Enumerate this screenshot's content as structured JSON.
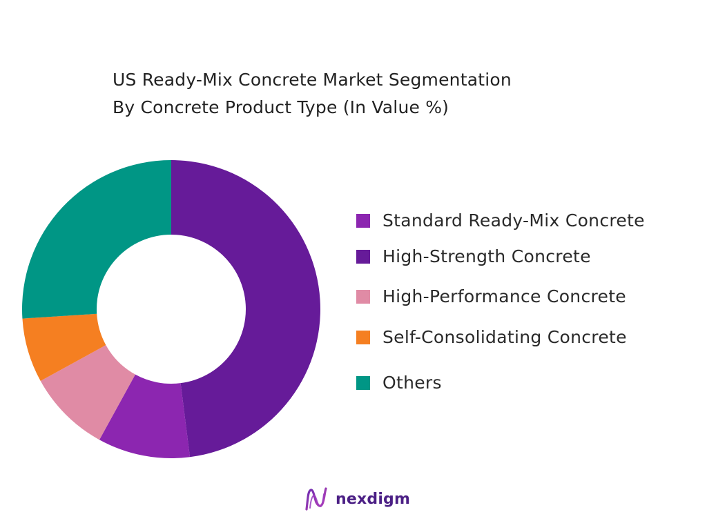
{
  "title": {
    "line1": "US Ready-Mix Concrete Market Segmentation",
    "line2": "By Concrete Product Type (In Value %)"
  },
  "chart_data": {
    "type": "pie",
    "variant": "donut",
    "title": "US Ready-Mix Concrete Market Segmentation By Concrete Product Type (In Value %)",
    "legend_position": "right",
    "segments": [
      {
        "name": "High-Strength Concrete",
        "value": 48,
        "color": "#661B99"
      },
      {
        "name": "Standard Ready-Mix Concrete",
        "value": 10,
        "color": "#8C26B0"
      },
      {
        "name": "High-Performance Concrete",
        "value": 9,
        "color": "#E08BA5"
      },
      {
        "name": "Self-Consolidating Concrete",
        "value": 7,
        "color": "#F57F21"
      },
      {
        "name": "Others",
        "value": 26,
        "color": "#009685"
      }
    ]
  },
  "legend": [
    {
      "label": "Standard Ready-Mix Concrete",
      "color": "#8C26B0"
    },
    {
      "label": "High-Strength Concrete",
      "color": "#661B99"
    },
    {
      "label": "High-Performance Concrete",
      "color": "#E08BA5"
    },
    {
      "label": "Self-Consolidating Concrete",
      "color": "#F57F21"
    },
    {
      "label": "Others",
      "color": "#009685"
    }
  ],
  "logo": {
    "text": "nexdigm",
    "icon": "nexdigm-logo-icon"
  }
}
